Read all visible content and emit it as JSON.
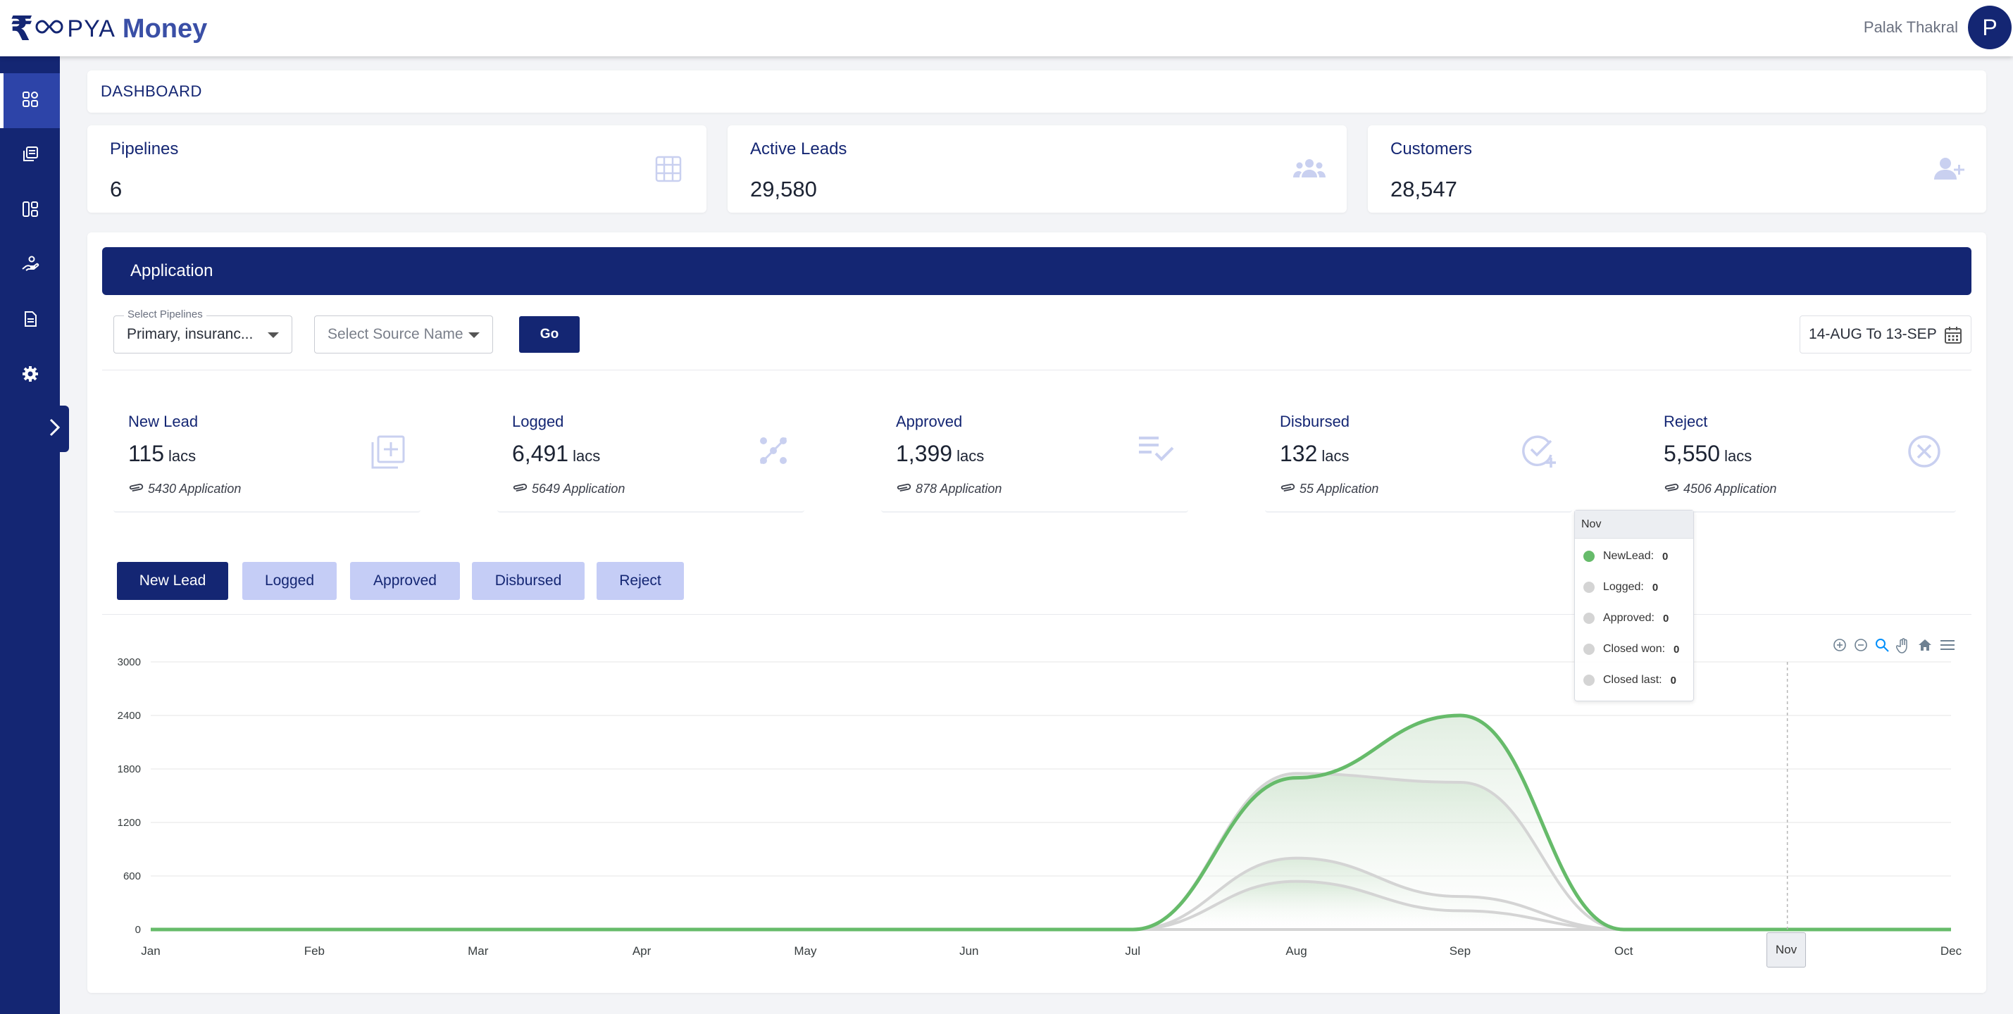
{
  "header": {
    "logo_r": "₹",
    "logo_pya": "PYA",
    "logo_money": "Money",
    "user_name": "Palak Thakral",
    "avatar_initial": "P"
  },
  "sidebar": {
    "items": [
      {
        "icon": "dashboard-grid-icon",
        "active": true
      },
      {
        "icon": "copy-icon",
        "active": false
      },
      {
        "icon": "layout-icon",
        "active": false
      },
      {
        "icon": "hand-coin-icon",
        "active": false
      },
      {
        "icon": "document-icon",
        "active": false
      },
      {
        "icon": "gear-icon",
        "active": false
      }
    ],
    "toggle_icon": "chevron-right-icon"
  },
  "breadcrumb": "DASHBOARD",
  "stats": [
    {
      "label": "Pipelines",
      "value": "6",
      "icon": "grid-table-icon"
    },
    {
      "label": "Active Leads",
      "value": "29,580",
      "icon": "users-group-icon"
    },
    {
      "label": "Customers",
      "value": "28,547",
      "icon": "user-add-icon"
    }
  ],
  "application": {
    "title": "Application",
    "pipelines_label": "Select Pipelines",
    "pipelines_value": "Primary, insuranc...",
    "source_placeholder": "Select Source Name",
    "go_label": "Go",
    "date_range": "14-AUG To 13-SEP"
  },
  "metrics": [
    {
      "label": "New Lead",
      "value": "115",
      "unit": "lacs",
      "apps": "5430 Application",
      "icon": "add-box-icon"
    },
    {
      "label": "Logged",
      "value": "6,491",
      "unit": "lacs",
      "apps": "5649 Application",
      "icon": "scatter-dots-icon"
    },
    {
      "label": "Approved",
      "value": "1,399",
      "unit": "lacs",
      "apps": "878 Application",
      "icon": "checklist-icon"
    },
    {
      "label": "Disbursed",
      "value": "132",
      "unit": "lacs",
      "apps": "55 Application",
      "icon": "check-add-icon"
    },
    {
      "label": "Reject",
      "value": "5,550",
      "unit": "lacs",
      "apps": "4506 Application",
      "icon": "close-circle-icon"
    }
  ],
  "tabs": [
    {
      "label": "New Lead",
      "active": true
    },
    {
      "label": "Logged",
      "active": false
    },
    {
      "label": "Approved",
      "active": false
    },
    {
      "label": "Disbursed",
      "active": false
    },
    {
      "label": "Reject",
      "active": false
    }
  ],
  "colors": {
    "primary": "#142673",
    "tab_inactive": "#c5cdf6",
    "newlead_series": "#66bb6a",
    "other_series": "#d4d4d4"
  },
  "chart_data": {
    "type": "area",
    "categories": [
      "Jan",
      "Feb",
      "Mar",
      "Apr",
      "May",
      "Jun",
      "Jul",
      "Aug",
      "Sep",
      "Oct",
      "Nov",
      "Dec"
    ],
    "y_ticks": [
      "3000",
      "2400",
      "1800",
      "1200",
      "600",
      "0"
    ],
    "ylim": [
      0,
      3000
    ],
    "grid": true,
    "series": [
      {
        "name": "NewLead",
        "values": [
          0,
          0,
          0,
          0,
          0,
          0,
          0,
          1700,
          2400,
          0,
          0,
          0
        ]
      },
      {
        "name": "Logged",
        "values": [
          0,
          0,
          0,
          0,
          0,
          0,
          0,
          1750,
          1650,
          0,
          0,
          0
        ]
      },
      {
        "name": "Approved",
        "values": [
          0,
          0,
          0,
          0,
          0,
          0,
          0,
          800,
          370,
          0,
          0,
          0
        ]
      },
      {
        "name": "Closed won",
        "values": [
          0,
          0,
          0,
          0,
          0,
          0,
          0,
          540,
          210,
          0,
          0,
          0
        ]
      },
      {
        "name": "Closed last",
        "values": [
          0,
          0,
          0,
          0,
          0,
          0,
          0,
          0,
          0,
          0,
          0,
          0
        ]
      }
    ],
    "tooltip": {
      "title": "Nov",
      "rows": [
        {
          "name": "NewLead:",
          "value": "0"
        },
        {
          "name": "Logged:",
          "value": "0"
        },
        {
          "name": "Approved:",
          "value": "0"
        },
        {
          "name": "Closed won:",
          "value": "0"
        },
        {
          "name": "Closed last:",
          "value": "0"
        }
      ]
    },
    "highlight_category": "Nov",
    "toolbar": [
      "zoom-in-icon",
      "zoom-out-icon",
      "selection-zoom-icon",
      "pan-hand-icon",
      "home-reset-icon",
      "menu-icon"
    ]
  }
}
